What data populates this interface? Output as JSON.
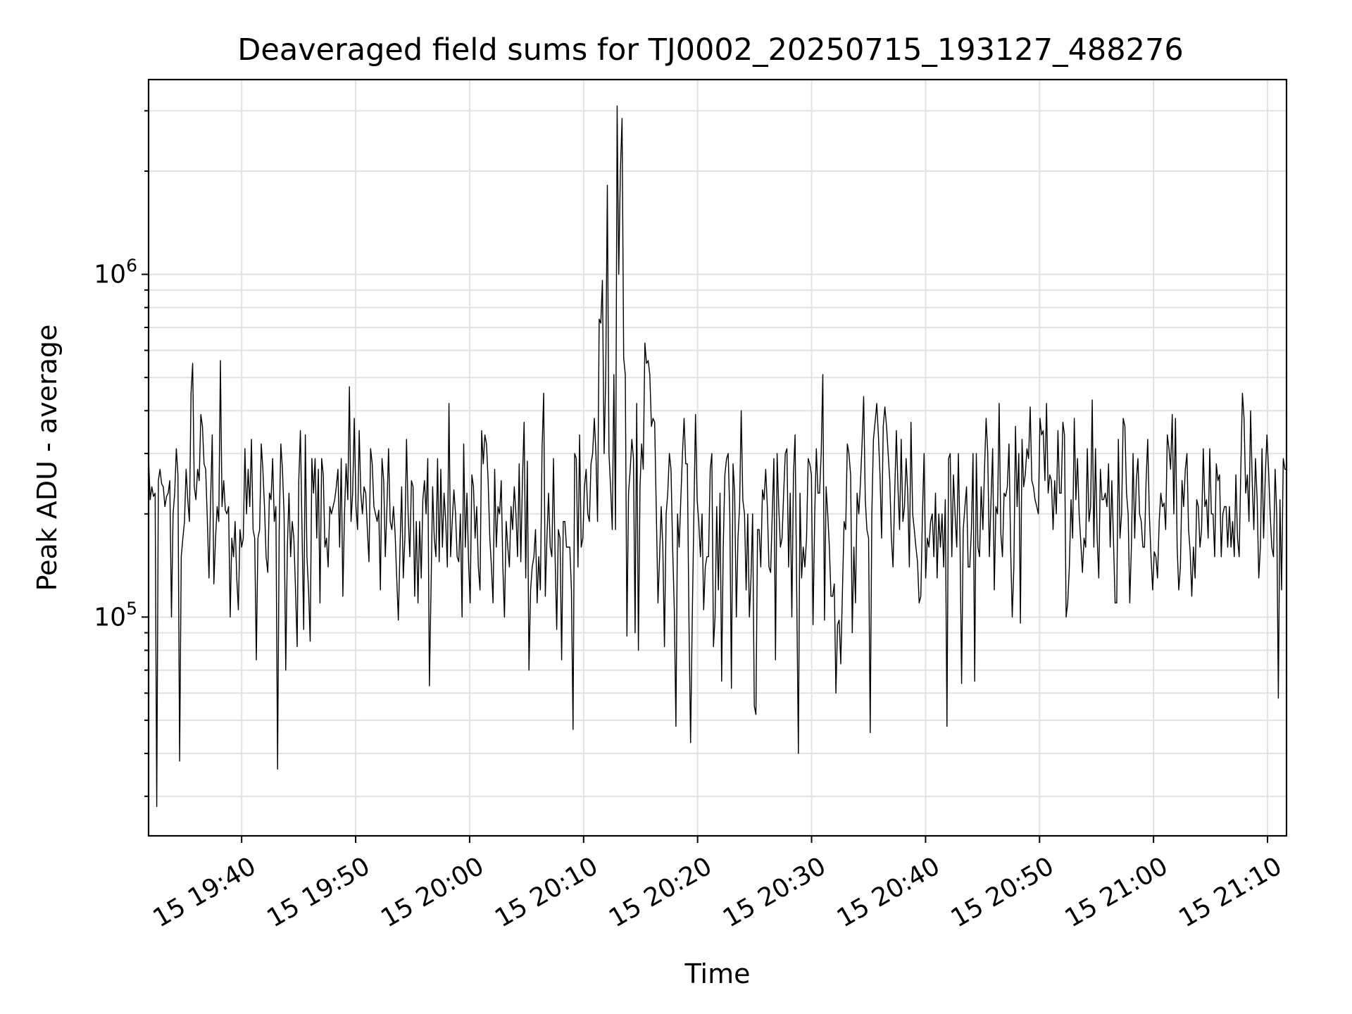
{
  "chart_data": {
    "type": "line",
    "title": "Deaveraged field sums for TJ0002_20250715_193127_488276",
    "xlabel": "Time",
    "ylabel": "Peak ADU - average",
    "xscale": "time",
    "yscale": "log",
    "xlim": [
      "2025-07-15 19:31:50",
      "2025-07-15 21:11:40"
    ],
    "ylim": [
      23000,
      3700000
    ],
    "grid": true,
    "legend": "none",
    "line_color": "#000000",
    "x_ticks": [
      "15 19:40",
      "15 19:50",
      "15 20:00",
      "15 20:10",
      "15 20:20",
      "15 20:30",
      "15 20:40",
      "15 20:50",
      "15 21:00",
      "15 21:10"
    ],
    "y_ticks": [
      {
        "base": "10",
        "exp": "5",
        "value": 100000
      },
      {
        "base": "10",
        "exp": "6",
        "value": 1000000
      }
    ],
    "series": [
      {
        "x_start": "2025-07-15 19:31:50",
        "x_end": "2025-07-15 21:11:40",
        "values": [
          290000,
          220000,
          240000,
          225000,
          230000,
          28000,
          250000,
          270000,
          245000,
          240000,
          210000,
          225000,
          230000,
          250000,
          100000,
          200000,
          230000,
          310000,
          260000,
          38000,
          150000,
          170000,
          190000,
          270000,
          220000,
          190000,
          450000,
          550000,
          240000,
          220000,
          270000,
          250000,
          390000,
          360000,
          280000,
          270000,
          190000,
          130000,
          220000,
          340000,
          125000,
          170000,
          210000,
          190000,
          560000,
          210000,
          250000,
          205000,
          200000,
          210000,
          100000,
          170000,
          150000,
          190000,
          130000,
          105000,
          180000,
          160000,
          170000,
          310000,
          200000,
          270000,
          210000,
          330000,
          180000,
          170000,
          75000,
          170000,
          180000,
          320000,
          270000,
          210000,
          150000,
          135000,
          230000,
          220000,
          290000,
          190000,
          210000,
          36000,
          180000,
          320000,
          270000,
          200000,
          70000,
          160000,
          230000,
          150000,
          190000,
          170000,
          120000,
          82000,
          250000,
          350000,
          180000,
          92000,
          340000,
          150000,
          120000,
          85000,
          290000,
          230000,
          290000,
          170000,
          270000,
          110000,
          290000,
          260000,
          160000,
          170000,
          140000,
          210000,
          200000,
          210000,
          220000,
          240000,
          270000,
          160000,
          290000,
          115000,
          200000,
          280000,
          220000,
          470000,
          190000,
          230000,
          380000,
          210000,
          180000,
          350000,
          230000,
          200000,
          240000,
          230000,
          180000,
          145000,
          310000,
          280000,
          210000,
          200000,
          190000,
          205000,
          120000,
          290000,
          250000,
          150000,
          210000,
          310000,
          190000,
          180000,
          210000,
          175000,
          130000,
          98000,
          160000,
          240000,
          130000,
          170000,
          330000,
          200000,
          150000,
          250000,
          240000,
          115000,
          190000,
          110000,
          190000,
          130000,
          220000,
          250000,
          200000,
          290000,
          63000,
          120000,
          240000,
          170000,
          150000,
          290000,
          145000,
          270000,
          160000,
          230000,
          190000,
          140000,
          420000,
          150000,
          190000,
          235000,
          200000,
          150000,
          145000,
          200000,
          100000,
          320000,
          160000,
          230000,
          145000,
          110000,
          260000,
          240000,
          170000,
          210000,
          140000,
          120000,
          350000,
          280000,
          340000,
          320000,
          250000,
          170000,
          140000,
          110000,
          270000,
          160000,
          210000,
          200000,
          250000,
          140000,
          100000,
          190000,
          160000,
          140000,
          210000,
          180000,
          240000,
          200000,
          150000,
          280000,
          145000,
          250000,
          370000,
          130000,
          285000,
          70000,
          120000,
          140000,
          150000,
          180000,
          110000,
          150000,
          120000,
          310000,
          450000,
          115000,
          170000,
          230000,
          160000,
          150000,
          290000,
          150000,
          92000,
          180000,
          170000,
          75000,
          190000,
          190000,
          160000,
          160000,
          160000,
          120000,
          47000,
          300000,
          290000,
          140000,
          340000,
          160000,
          170000,
          240000,
          270000,
          200000,
          190000,
          280000,
          300000,
          380000,
          300000,
          190000,
          740000,
          720000,
          960000,
          300000,
          500000,
          1820000,
          300000,
          240000,
          180000,
          510000,
          180000,
          3100000,
          1000000,
          2000000,
          2850000,
          570000,
          510000,
          88000,
          230000,
          270000,
          330000,
          290000,
          90000,
          420000,
          80000,
          240000,
          320000,
          270000,
          630000,
          550000,
          560000,
          510000,
          360000,
          380000,
          370000,
          200000,
          110000,
          150000,
          210000,
          160000,
          82000,
          200000,
          230000,
          300000,
          270000,
          160000,
          105000,
          48000,
          200000,
          160000,
          220000,
          300000,
          380000,
          280000,
          280000,
          98000,
          43000,
          100000,
          200000,
          390000,
          220000,
          190000,
          150000,
          200000,
          105000,
          140000,
          150000,
          150000,
          270000,
          300000,
          82000,
          100000,
          210000,
          120000,
          230000,
          65000,
          160000,
          260000,
          290000,
          300000,
          200000,
          62000,
          280000,
          230000,
          100000,
          170000,
          210000,
          400000,
          220000,
          200000,
          120000,
          200000,
          100000,
          130000,
          200000,
          55000,
          52000,
          180000,
          180000,
          140000,
          235000,
          220000,
          270000,
          210000,
          140000,
          135000,
          200000,
          290000,
          75000,
          300000,
          210000,
          160000,
          170000,
          230000,
          300000,
          310000,
          140000,
          230000,
          100000,
          260000,
          340000,
          120000,
          40000,
          230000,
          130000,
          160000,
          140000,
          170000,
          290000,
          280000,
          260000,
          95000,
          200000,
          310000,
          230000,
          230000,
          300000,
          510000,
          98000,
          240000,
          200000,
          160000,
          115000,
          115000,
          125000,
          60000,
          95000,
          98000,
          73000,
          120000,
          190000,
          180000,
          320000,
          300000,
          260000,
          90000,
          160000,
          110000,
          230000,
          200000,
          245000,
          320000,
          440000,
          220000,
          180000,
          170000,
          46000,
          200000,
          330000,
          370000,
          420000,
          340000,
          260000,
          170000,
          360000,
          410000,
          360000,
          300000,
          250000,
          170000,
          140000,
          230000,
          350000,
          240000,
          180000,
          330000,
          190000,
          210000,
          290000,
          230000,
          140000,
          370000,
          200000,
          180000,
          160000,
          145000,
          110000,
          115000,
          200000,
          300000,
          130000,
          170000,
          160000,
          190000,
          200000,
          150000,
          230000,
          130000,
          200000,
          160000,
          200000,
          140000,
          220000,
          48000,
          290000,
          300000,
          150000,
          260000,
          200000,
          160000,
          300000,
          170000,
          64000,
          180000,
          210000,
          240000,
          140000,
          140000,
          180000,
          300000,
          65000,
          300000,
          160000,
          150000,
          240000,
          180000,
          270000,
          380000,
          300000,
          150000,
          220000,
          310000,
          120000,
          210000,
          200000,
          420000,
          175000,
          150000,
          230000,
          225000,
          240000,
          320000,
          160000,
          100000,
          140000,
          360000,
          210000,
          300000,
          96000,
          330000,
          240000,
          260000,
          310000,
          290000,
          410000,
          250000,
          240000,
          220000,
          210000,
          200000,
          380000,
          340000,
          350000,
          250000,
          420000,
          230000,
          260000,
          250000,
          180000,
          250000,
          200000,
          350000,
          230000,
          230000,
          370000,
          340000,
          100000,
          110000,
          140000,
          220000,
          170000,
          380000,
          220000,
          290000,
          200000,
          165000,
          135000,
          170000,
          160000,
          310000,
          190000,
          210000,
          430000,
          160000,
          310000,
          170000,
          130000,
          270000,
          220000,
          220000,
          230000,
          210000,
          280000,
          160000,
          250000,
          170000,
          110000,
          110000,
          330000,
          170000,
          200000,
          380000,
          360000,
          230000,
          200000,
          110000,
          160000,
          300000,
          170000,
          250000,
          290000,
          200000,
          190000,
          160000,
          160000,
          250000,
          330000,
          200000,
          150000,
          120000,
          155000,
          150000,
          130000,
          190000,
          230000,
          210000,
          215000,
          180000,
          340000,
          310000,
          270000,
          390000,
          200000,
          380000,
          160000,
          120000,
          140000,
          250000,
          210000,
          270000,
          300000,
          180000,
          155000,
          115000,
          160000,
          130000,
          220000,
          210000,
          160000,
          180000,
          310000,
          210000,
          220000,
          170000,
          310000,
          200000,
          200000,
          150000,
          280000,
          250000,
          260000,
          150000,
          200000,
          210000,
          210000,
          160000,
          210000,
          160000,
          190000,
          150000,
          260000,
          170000,
          150000,
          270000,
          450000,
          380000,
          230000,
          260000,
          190000,
          400000,
          250000,
          180000,
          290000,
          220000,
          130000,
          160000,
          310000,
          170000,
          260000,
          340000,
          270000,
          200000,
          160000,
          150000,
          270000,
          200000,
          58000,
          220000,
          120000,
          290000,
          270000,
          270000
        ]
      }
    ]
  }
}
